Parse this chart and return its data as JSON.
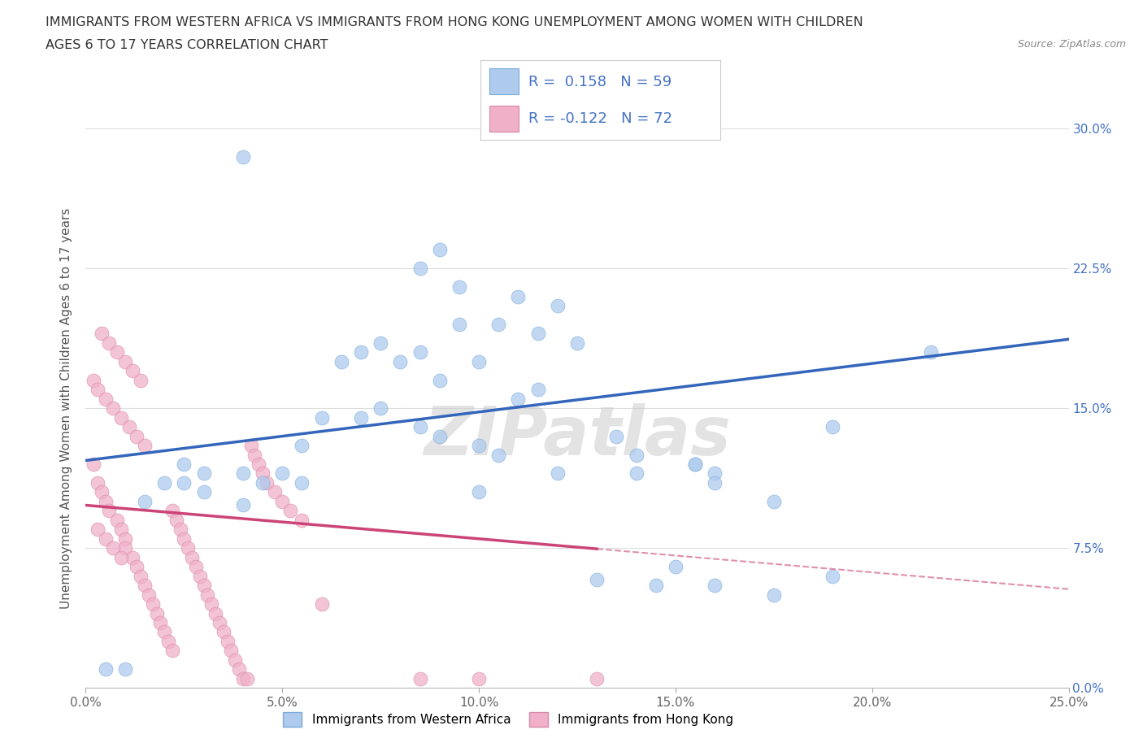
{
  "title_line1": "IMMIGRANTS FROM WESTERN AFRICA VS IMMIGRANTS FROM HONG KONG UNEMPLOYMENT AMONG WOMEN WITH CHILDREN",
  "title_line2": "AGES 6 TO 17 YEARS CORRELATION CHART",
  "source": "Source: ZipAtlas.com",
  "ylabel": "Unemployment Among Women with Children Ages 6 to 17 years",
  "xlim": [
    0.0,
    0.25
  ],
  "ylim": [
    0.0,
    0.3
  ],
  "xticks": [
    0.0,
    0.05,
    0.1,
    0.15,
    0.2,
    0.25
  ],
  "yticks": [
    0.0,
    0.075,
    0.15,
    0.225,
    0.3
  ],
  "xtick_labels": [
    "0.0%",
    "5.0%",
    "10.0%",
    "15.0%",
    "20.0%",
    "25.0%"
  ],
  "ytick_labels_right": [
    "0.0%",
    "7.5%",
    "15.0%",
    "22.5%",
    "30.0%"
  ],
  "series1_name": "Immigrants from Western Africa",
  "series1_color": "#aecbee",
  "series1_edge": "#7aaad8",
  "series1_R": 0.158,
  "series1_N": 59,
  "series2_name": "Immigrants from Hong Kong",
  "series2_color": "#f0b0c8",
  "series2_edge": "#d888a8",
  "series2_R": -0.122,
  "series2_N": 72,
  "trend1_color": "#3366bb",
  "trend2_color": "#cc4477",
  "watermark": "ZIPatlas",
  "background_color": "#ffffff",
  "grid_color": "#dddddd",
  "right_tick_color": "#4472c4",
  "title_color": "#333333",
  "scatter1_x": [
    0.04,
    0.095,
    0.085,
    0.09,
    0.11,
    0.12,
    0.115,
    0.095,
    0.125,
    0.105,
    0.065,
    0.07,
    0.075,
    0.08,
    0.085,
    0.09,
    0.1,
    0.11,
    0.115,
    0.06,
    0.07,
    0.075,
    0.085,
    0.09,
    0.1,
    0.105,
    0.055,
    0.025,
    0.03,
    0.04,
    0.045,
    0.05,
    0.055,
    0.02,
    0.025,
    0.03,
    0.04,
    0.135,
    0.14,
    0.155,
    0.16,
    0.19,
    0.215,
    0.13,
    0.145,
    0.15,
    0.16,
    0.175,
    0.015,
    0.01,
    0.005,
    0.1,
    0.12,
    0.14,
    0.155,
    0.16,
    0.175,
    0.19
  ],
  "scatter1_y": [
    0.285,
    0.215,
    0.225,
    0.235,
    0.21,
    0.205,
    0.19,
    0.195,
    0.185,
    0.195,
    0.175,
    0.18,
    0.185,
    0.175,
    0.18,
    0.165,
    0.175,
    0.155,
    0.16,
    0.145,
    0.145,
    0.15,
    0.14,
    0.135,
    0.13,
    0.125,
    0.13,
    0.12,
    0.115,
    0.115,
    0.11,
    0.115,
    0.11,
    0.11,
    0.11,
    0.105,
    0.098,
    0.135,
    0.125,
    0.12,
    0.115,
    0.14,
    0.18,
    0.058,
    0.055,
    0.065,
    0.055,
    0.05,
    0.1,
    0.01,
    0.01,
    0.105,
    0.115,
    0.115,
    0.12,
    0.11,
    0.1,
    0.06
  ],
  "scatter2_x": [
    0.002,
    0.003,
    0.004,
    0.005,
    0.006,
    0.008,
    0.009,
    0.01,
    0.01,
    0.012,
    0.013,
    0.014,
    0.015,
    0.016,
    0.017,
    0.018,
    0.019,
    0.02,
    0.021,
    0.022,
    0.022,
    0.023,
    0.024,
    0.025,
    0.026,
    0.027,
    0.028,
    0.029,
    0.03,
    0.031,
    0.032,
    0.033,
    0.034,
    0.035,
    0.036,
    0.037,
    0.038,
    0.039,
    0.04,
    0.041,
    0.042,
    0.043,
    0.044,
    0.045,
    0.046,
    0.048,
    0.05,
    0.052,
    0.055,
    0.06,
    0.002,
    0.003,
    0.005,
    0.007,
    0.009,
    0.011,
    0.013,
    0.015,
    0.004,
    0.006,
    0.008,
    0.01,
    0.012,
    0.014,
    0.003,
    0.005,
    0.007,
    0.009,
    0.13,
    0.085,
    0.1
  ],
  "scatter2_y": [
    0.12,
    0.11,
    0.105,
    0.1,
    0.095,
    0.09,
    0.085,
    0.08,
    0.075,
    0.07,
    0.065,
    0.06,
    0.055,
    0.05,
    0.045,
    0.04,
    0.035,
    0.03,
    0.025,
    0.02,
    0.095,
    0.09,
    0.085,
    0.08,
    0.075,
    0.07,
    0.065,
    0.06,
    0.055,
    0.05,
    0.045,
    0.04,
    0.035,
    0.03,
    0.025,
    0.02,
    0.015,
    0.01,
    0.005,
    0.005,
    0.13,
    0.125,
    0.12,
    0.115,
    0.11,
    0.105,
    0.1,
    0.095,
    0.09,
    0.045,
    0.165,
    0.16,
    0.155,
    0.15,
    0.145,
    0.14,
    0.135,
    0.13,
    0.19,
    0.185,
    0.18,
    0.175,
    0.17,
    0.165,
    0.085,
    0.08,
    0.075,
    0.07,
    0.005,
    0.005,
    0.005
  ],
  "trend1_intercept": 0.122,
  "trend1_slope": 0.26,
  "trend2_intercept": 0.098,
  "trend2_slope": -0.18,
  "trend2_solid_end": 0.13,
  "trend2_dashed_end": 0.25
}
